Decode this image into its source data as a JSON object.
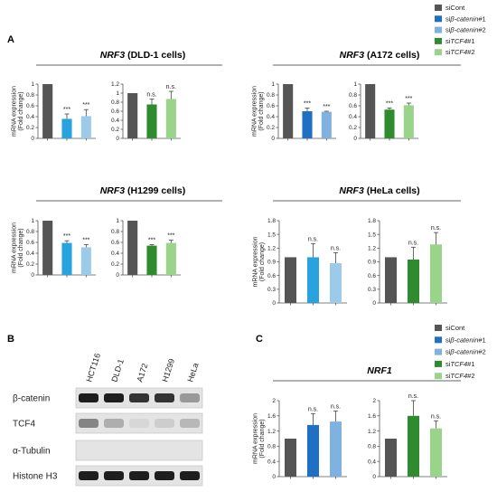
{
  "panels": {
    "A": "A",
    "B": "B",
    "C": "C"
  },
  "colors": {
    "siCont": "#555555",
    "si_b_catenin_1": "#1f6fc5",
    "si_b_catenin_2": "#7fb2e0",
    "siTCF4_1": "#2e8b2e",
    "siTCF4_2": "#9ad38a",
    "abar_cat1": "#29a3de",
    "abar_cat2": "#9ccbea"
  },
  "legend_top": {
    "items": [
      {
        "pre": "si",
        "ital": "",
        "post": "Cont",
        "color": "#555555"
      },
      {
        "pre": "si",
        "ital": "β-catenin",
        "post": "#1",
        "color": "#1f6fc5"
      },
      {
        "pre": "si",
        "ital": "β-catenin",
        "post": "#2",
        "color": "#7fb2e0"
      },
      {
        "pre": "si",
        "ital": "TCF4",
        "post": "#1",
        "color": "#2e8b2e"
      },
      {
        "pre": "si",
        "ital": "TCF4",
        "post": "#2",
        "color": "#9ad38a"
      }
    ]
  },
  "legend_c": {
    "items": [
      {
        "pre": "si",
        "ital": "",
        "post": "Cont",
        "color": "#555555"
      },
      {
        "pre": "si",
        "ital": "β-catenin",
        "post": "#1",
        "color": "#1f6fc5"
      },
      {
        "pre": "si",
        "ital": "β-catenin",
        "post": "#2",
        "color": "#7fb2e0"
      },
      {
        "pre": "si",
        "ital": "TCF4",
        "post": "#1",
        "color": "#2e8b2e"
      },
      {
        "pre": "si",
        "ital": "TCF4",
        "post": "#2",
        "color": "#9ad38a"
      }
    ]
  },
  "ylabel_line1": "mRNA expression",
  "ylabel_line2": "(Fold change)",
  "chart_data": [
    {
      "type": "bar",
      "group": "dld1",
      "title_gene": "NRF3",
      "title_rest": " (DLD-1 cells)",
      "ylim": [
        0,
        1
      ],
      "yticks": [
        "0",
        "0.2",
        "0.4",
        "0.6",
        "0.8",
        "1"
      ],
      "values": [
        1,
        0.36,
        0.41
      ],
      "errors": [
        0,
        0.09,
        0.12
      ],
      "sig": [
        "",
        "***",
        "***"
      ],
      "colors": [
        "#555555",
        "#29a3de",
        "#9ccbea"
      ]
    },
    {
      "type": "bar",
      "group": "dld1",
      "ylim": [
        0,
        1.2
      ],
      "yticks": [
        "0",
        "0.2",
        "0.4",
        "0.6",
        "0.8",
        "1",
        "1.2"
      ],
      "values": [
        1,
        0.75,
        0.87
      ],
      "errors": [
        0,
        0.12,
        0.17
      ],
      "sig": [
        "",
        "n.s.",
        "n.s."
      ],
      "colors": [
        "#555555",
        "#2e8b2e",
        "#9ad38a"
      ]
    },
    {
      "type": "bar",
      "group": "a172",
      "title_gene": "NRF3",
      "title_rest": " (A172 cells)",
      "ylim": [
        0,
        1
      ],
      "yticks": [
        "0",
        "0.2",
        "0.4",
        "0.6",
        "0.8",
        "1"
      ],
      "values": [
        1,
        0.5,
        0.49
      ],
      "errors": [
        0,
        0.06,
        0.01
      ],
      "sig": [
        "",
        "***",
        "***"
      ],
      "colors": [
        "#555555",
        "#1f6fc5",
        "#7fb2e0"
      ]
    },
    {
      "type": "bar",
      "group": "a172",
      "ylim": [
        0,
        1
      ],
      "yticks": [
        "0",
        "0.2",
        "0.4",
        "0.6",
        "0.8",
        "1"
      ],
      "values": [
        1,
        0.53,
        0.61
      ],
      "errors": [
        0,
        0.03,
        0.04
      ],
      "sig": [
        "",
        "***",
        "***"
      ],
      "colors": [
        "#555555",
        "#2e8b2e",
        "#9ad38a"
      ]
    },
    {
      "type": "bar",
      "group": "h1299",
      "title_gene": "NRF3",
      "title_rest": " (H1299 cells)",
      "ylim": [
        0,
        1
      ],
      "yticks": [
        "0",
        "0.2",
        "0.4",
        "0.6",
        "0.8",
        "1"
      ],
      "values": [
        1,
        0.59,
        0.51
      ],
      "errors": [
        0,
        0.04,
        0.05
      ],
      "sig": [
        "",
        "***",
        "***"
      ],
      "colors": [
        "#555555",
        "#29a3de",
        "#9ccbea"
      ]
    },
    {
      "type": "bar",
      "group": "h1299",
      "ylim": [
        0,
        1
      ],
      "yticks": [
        "0",
        "0.2",
        "0.4",
        "0.6",
        "0.8",
        "1"
      ],
      "values": [
        1,
        0.54,
        0.59
      ],
      "errors": [
        0,
        0.02,
        0.05
      ],
      "sig": [
        "",
        "***",
        "***"
      ],
      "colors": [
        "#555555",
        "#2e8b2e",
        "#9ad38a"
      ]
    },
    {
      "type": "bar",
      "group": "hela",
      "title_gene": "NRF3",
      "title_rest": " (HeLa cells)",
      "ylim": [
        0,
        1.8
      ],
      "yticks": [
        "0",
        "0.3",
        "0.6",
        "0.9",
        "1.2",
        "1.5",
        "1.8"
      ],
      "values": [
        1,
        1,
        0.87
      ],
      "errors": [
        0,
        0.3,
        0.23
      ],
      "sig": [
        "",
        "n.s.",
        "n.s."
      ],
      "colors": [
        "#555555",
        "#29a3de",
        "#9ccbea"
      ]
    },
    {
      "type": "bar",
      "group": "hela",
      "ylim": [
        0,
        1.8
      ],
      "yticks": [
        "0",
        "0.3",
        "0.6",
        "0.9",
        "1.2",
        "1.5",
        "1.8"
      ],
      "values": [
        1,
        0.95,
        1.28
      ],
      "errors": [
        0,
        0.27,
        0.26
      ],
      "sig": [
        "",
        "n.s.",
        "n.s."
      ],
      "colors": [
        "#555555",
        "#2e8b2e",
        "#9ad38a"
      ]
    },
    {
      "type": "bar",
      "group": "nrf1",
      "title_gene": "NRF1",
      "title_rest": "",
      "ylim": [
        0,
        2
      ],
      "yticks": [
        "0",
        "0.4",
        "0.8",
        "1.2",
        "1.6",
        "2"
      ],
      "values": [
        1,
        1.36,
        1.45
      ],
      "errors": [
        0,
        0.3,
        0.28
      ],
      "sig": [
        "",
        "n.s.",
        "n.s."
      ],
      "colors": [
        "#555555",
        "#1f6fc5",
        "#7fb2e0"
      ]
    },
    {
      "type": "bar",
      "group": "nrf1",
      "ylim": [
        0,
        2
      ],
      "yticks": [
        "0",
        "0.4",
        "0.8",
        "1.2",
        "1.6",
        "2"
      ],
      "values": [
        1,
        1.6,
        1.27
      ],
      "errors": [
        0,
        0.4,
        0.2
      ],
      "sig": [
        "",
        "n.s.",
        "n.s."
      ],
      "colors": [
        "#555555",
        "#2e8b2e",
        "#9ad38a"
      ]
    }
  ],
  "blot": {
    "lanes": [
      "HCT116",
      "DLD-1",
      "A172",
      "H1299",
      "HeLa"
    ],
    "rows": [
      {
        "label": "β-catenin",
        "intensity": [
          0.95,
          0.95,
          0.85,
          0.85,
          0.35
        ]
      },
      {
        "label": "TCF4",
        "intensity": [
          0.45,
          0.25,
          0.05,
          0.1,
          0.2
        ]
      },
      {
        "label": "α-Tubulin",
        "intensity": [
          0,
          0,
          0,
          0,
          0
        ]
      },
      {
        "label": "Histone H3",
        "intensity": [
          0.95,
          0.95,
          0.95,
          0.95,
          0.95
        ]
      }
    ]
  }
}
